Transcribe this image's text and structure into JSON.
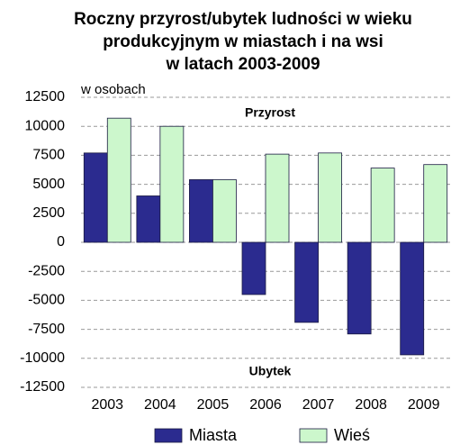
{
  "chart_data": {
    "type": "bar",
    "title": [
      "Roczny przyrost/ubytek ludności w wieku",
      "produkcyjnym w miastach i na wsi",
      "w latach 2003-2009"
    ],
    "y_label": "w osobach",
    "annotations": [
      "Przyrost",
      "Ubytek"
    ],
    "categories": [
      "2003",
      "2004",
      "2005",
      "2006",
      "2007",
      "2008",
      "2009"
    ],
    "series": [
      {
        "name": "Miasta",
        "color": "#2b2b8f",
        "values": [
          7700,
          4000,
          5400,
          -4500,
          -6900,
          -7900,
          -9700
        ]
      },
      {
        "name": "Wieś",
        "color": "#ccf7cc",
        "values": [
          10700,
          10000,
          5400,
          7600,
          7700,
          6400,
          6700
        ]
      }
    ],
    "ylim": [
      -12500,
      12500
    ],
    "yticks": [
      12500,
      10000,
      7500,
      5000,
      2500,
      0,
      -2500,
      -5000,
      -7500,
      -10000,
      -12500
    ],
    "grid": true,
    "legend": "bottom"
  }
}
